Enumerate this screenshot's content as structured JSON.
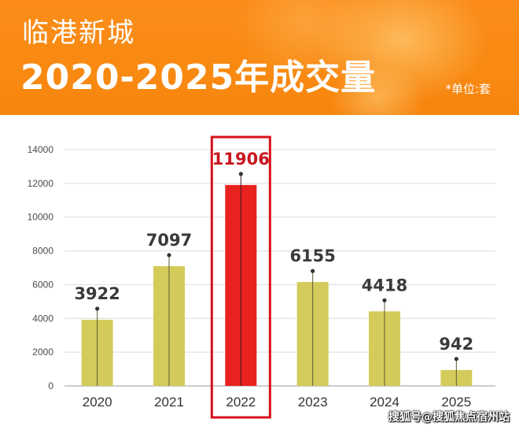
{
  "header": {
    "title_line1": "临港新城",
    "title_line2": "2020-2025年成交量",
    "unit_note": "*单位:套"
  },
  "watermark": "搜狐号@搜狐焦点宿州站",
  "colors": {
    "banner": "#f88a12",
    "bar": "#d4cc5a",
    "highlight_bar": "#e8231f",
    "highlight_label": "#c8161d",
    "label": "#3a3a3a"
  },
  "chart_data": {
    "type": "bar",
    "categories": [
      "2020",
      "2021",
      "2022",
      "2023",
      "2024",
      "2025"
    ],
    "values": [
      3922,
      7097,
      11906,
      6155,
      4418,
      942
    ],
    "data_labels": [
      "3922",
      "7097",
      "11906",
      "6155",
      "4418",
      "942"
    ],
    "highlight_index": 2,
    "yticks": [
      "0",
      "2000",
      "4000",
      "6000",
      "8000",
      "10000",
      "12000",
      "14000"
    ],
    "ylim": [
      0,
      14000
    ],
    "grid": true,
    "legend": "none",
    "title": "",
    "xlabel": "",
    "ylabel": ""
  }
}
